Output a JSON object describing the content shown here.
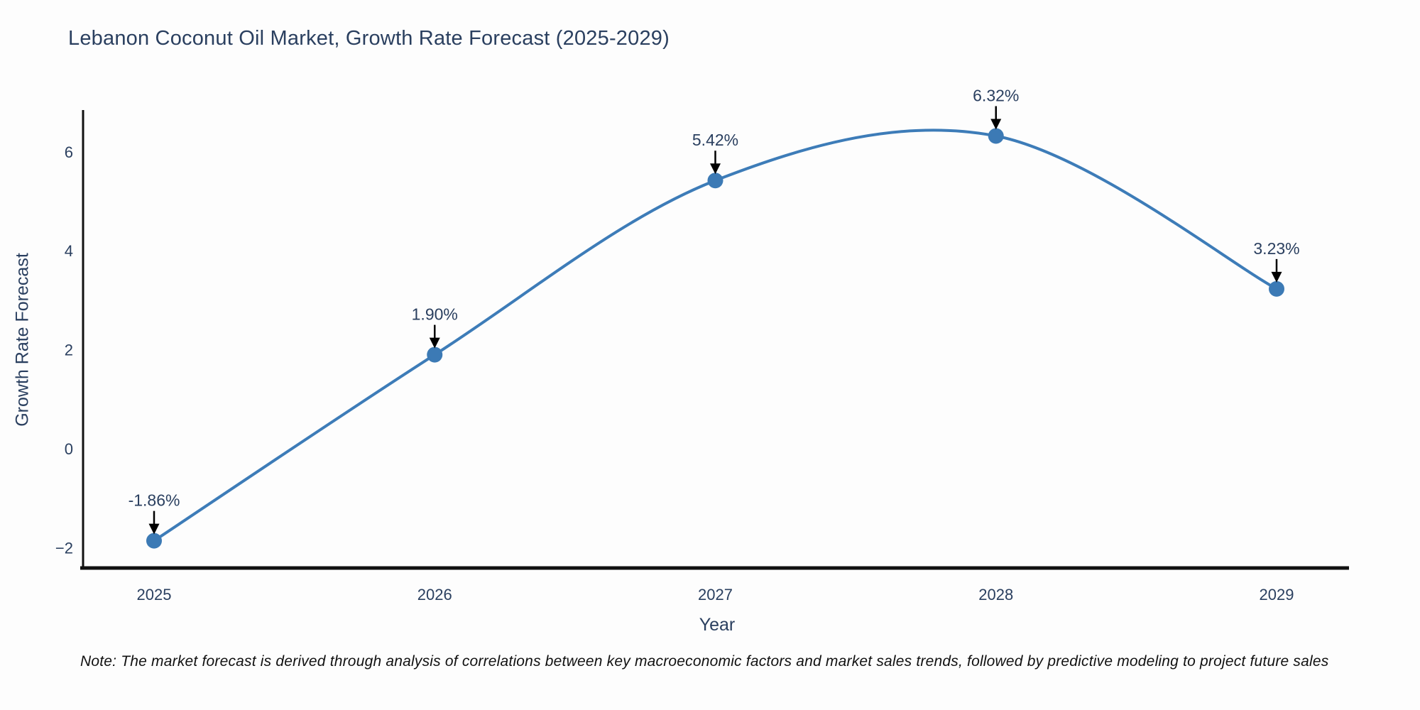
{
  "figure": {
    "title": "Lebanon Coconut Oil Market, Growth Rate Forecast (2025-2029)",
    "note": "Note: The market forecast is derived through analysis of correlations between key macroeconomic factors and market sales trends, followed by predictive modeling to project future sales",
    "colors": {
      "background": "#fdfdfd",
      "text": "#2a3f5f",
      "axis_line": "#111111",
      "series_line": "#3d7cb8",
      "marker_fill": "#3c7ab5",
      "arrow": "#000000",
      "note_text": "#111111"
    }
  },
  "chart_data": {
    "type": "line",
    "line_shape": "spline",
    "title": "Lebanon Coconut Oil Market, Growth Rate Forecast (2025-2029)",
    "xlabel": "Year",
    "ylabel": "Growth Rate Forecast",
    "x": [
      2025,
      2026,
      2027,
      2028,
      2029
    ],
    "x_tick_labels": [
      "2025",
      "2026",
      "2027",
      "2028",
      "2029"
    ],
    "series": [
      {
        "name": "Growth Rate Forecast",
        "values": [
          -1.86,
          1.9,
          5.42,
          6.32,
          3.23
        ],
        "point_labels": [
          "-1.86%",
          "1.90%",
          "5.42%",
          "6.32%",
          "3.23%"
        ]
      }
    ],
    "y_ticks": [
      6,
      4,
      2,
      0,
      -2
    ],
    "y_tick_labels": [
      "6",
      "4",
      "2",
      "0",
      "−2"
    ],
    "ylim": [
      -2.41,
      6.84
    ],
    "grid": false,
    "legend_visible": false,
    "markers": true,
    "annotations_have_arrows": true
  }
}
